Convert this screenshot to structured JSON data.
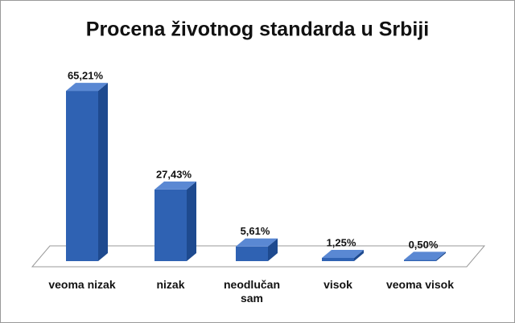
{
  "chart_data": {
    "type": "bar3d",
    "title": "Procena životnog standarda u Srbiji",
    "categories": [
      "veoma nizak",
      "nizak",
      "neodlučan sam",
      "visok",
      "veoma visok"
    ],
    "values": [
      65.21,
      27.43,
      5.61,
      1.25,
      0.5
    ],
    "value_labels": [
      "65,21%",
      "27,43%",
      "5,61%",
      "1,25%",
      "0,50%"
    ],
    "color": "#2f62b3"
  }
}
